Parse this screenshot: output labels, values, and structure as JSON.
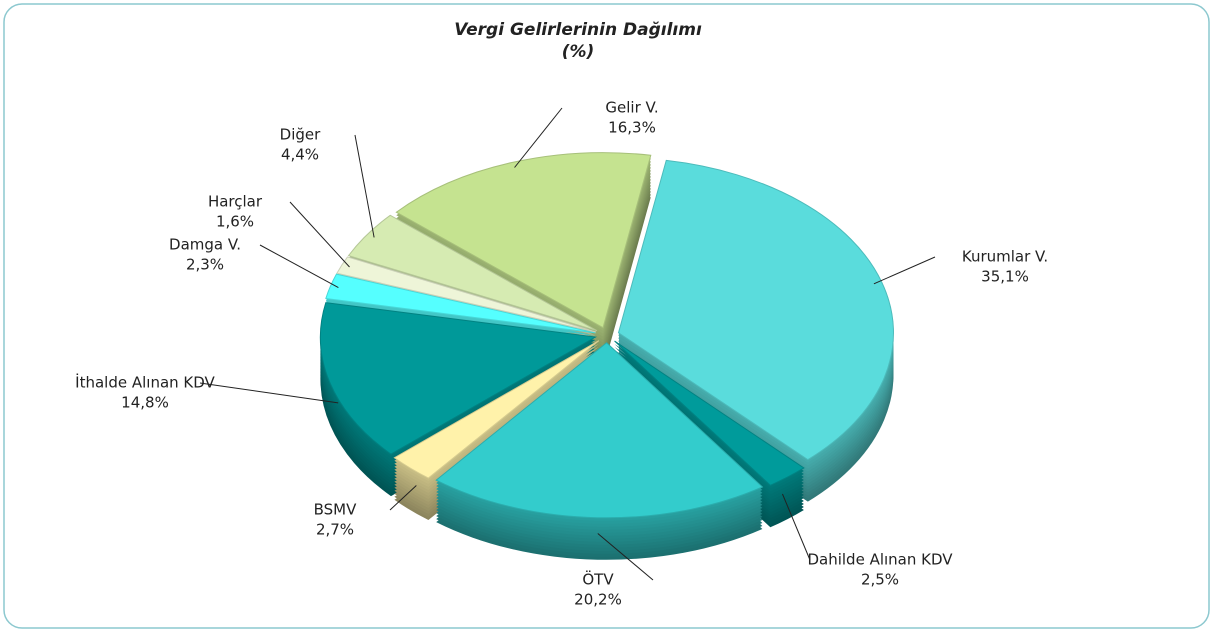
{
  "chart_data": {
    "type": "pie",
    "title": "Vergi Gelirlerinin Dağılımı",
    "subtitle": "(%)",
    "categories": [
      "Kurumlar V.",
      "Dahilde Alınan KDV",
      "ÖTV",
      "BSMV",
      "İthalde Alınan KDV",
      "Damga V.",
      "Harçlar",
      "Diğer",
      "Gelir V."
    ],
    "values": [
      35.1,
      2.5,
      20.2,
      2.7,
      14.8,
      2.3,
      1.6,
      4.4,
      16.3
    ],
    "value_labels": [
      "35,1%",
      "2,5%",
      "20,2%",
      "2,7%",
      "14,8%",
      "2,3%",
      "1,6%",
      "4,4%",
      "16,3%"
    ],
    "colors": [
      "#5adcdc",
      "#009b9b",
      "#33cccc",
      "#fff2aa",
      "#009999",
      "#55ffff",
      "#eef5d8",
      "#d6ebb2",
      "#c5e390"
    ]
  }
}
